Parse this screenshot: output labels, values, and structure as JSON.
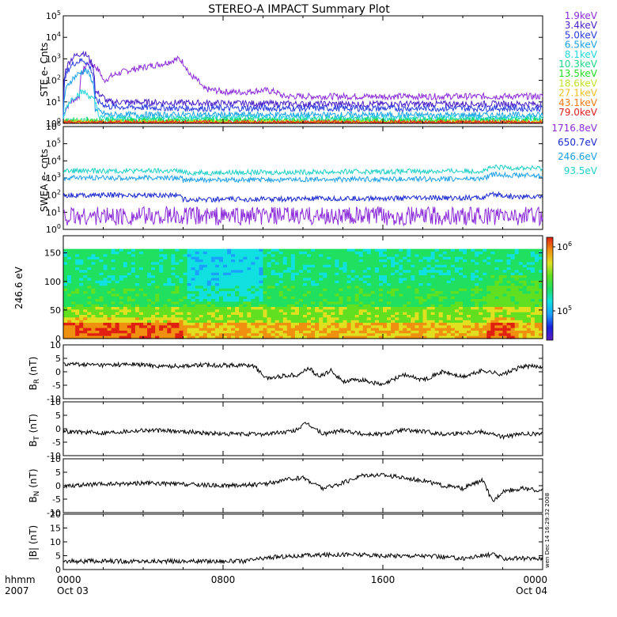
{
  "title": "STEREO-A IMPACT Summary Plot",
  "x_axis": {
    "corner_labels": [
      "hhmm",
      "2007"
    ],
    "ticks": [
      {
        "time": "0000",
        "date": "Oct 03",
        "hour": 0
      },
      {
        "time": "0800",
        "date": "",
        "hour": 8
      },
      {
        "time": "1600",
        "date": "",
        "hour": 16
      },
      {
        "time": "0000",
        "date": "Oct 04",
        "hour": 24
      }
    ]
  },
  "side_stamp": "wen Dec 14 16:29:32 2008",
  "colors": {
    "ste": [
      "#8b2bd9",
      "#4a1ec8",
      "#2a3ce0",
      "#1aa0e6",
      "#20d8d8",
      "#1cd888",
      "#20dd22",
      "#bfe025",
      "#f0c020",
      "#f07a10",
      "#e02020"
    ],
    "swea": [
      "#8b2bd9",
      "#1a28d0",
      "#1da0e8",
      "#20d0c8"
    ],
    "colorbar": [
      "#5a1dbf",
      "#1a20e0",
      "#1aa0ff",
      "#10e0e0",
      "#20e060",
      "#60e020",
      "#e0e020",
      "#f09010",
      "#e02010"
    ]
  },
  "chart_data": [
    {
      "type": "line",
      "panel": "ste",
      "ylabel": "STE e- Cnts",
      "yscale": "log",
      "ylim": [
        1,
        100000
      ],
      "ytick_labels": [
        "10^0",
        "10^1",
        "10^2",
        "10^3",
        "10^4",
        "10^5"
      ],
      "series": [
        {
          "name": "1.9keV",
          "x_hours": [
            0,
            0.8,
            1.3,
            2,
            3,
            4,
            5,
            5.8,
            6.3,
            7,
            8,
            9,
            10,
            10.6,
            11,
            14,
            18,
            22,
            24
          ],
          "values": [
            2.2,
            18,
            700,
            90,
            250,
            400,
            600,
            1000,
            180,
            40,
            30,
            28,
            35,
            30,
            18,
            18,
            18,
            18,
            18
          ]
        },
        {
          "name": "3.4keV",
          "x_hours": [
            0,
            0.5,
            1,
            1.6,
            2.2,
            6,
            12,
            24
          ],
          "values": [
            1.5,
            1200,
            2000,
            30,
            10,
            9,
            8,
            8
          ]
        },
        {
          "name": "5.0keV",
          "x_hours": [
            0,
            0.5,
            1,
            1.6,
            2.2,
            6,
            12,
            24
          ],
          "values": [
            1.3,
            600,
            900,
            12,
            6,
            5,
            5,
            5
          ]
        },
        {
          "name": "6.5keV",
          "x_hours": [
            0,
            0.6,
            1.1,
            1.6,
            2.2,
            24
          ],
          "values": [
            1.2,
            150,
            300,
            4,
            2.5,
            2.4
          ]
        },
        {
          "name": "8.1keV",
          "x_hours": [
            0,
            1,
            1.8,
            24
          ],
          "values": [
            1.1,
            30,
            1.8,
            1.7
          ]
        },
        {
          "name": "10.3keV",
          "x_hours": [
            0,
            24
          ],
          "values": [
            1.4,
            1.4
          ]
        },
        {
          "name": "13.5keV",
          "x_hours": [
            0,
            24
          ],
          "values": [
            1.2,
            1.2
          ]
        },
        {
          "name": "18.6keV",
          "x_hours": [
            0,
            24
          ],
          "values": [
            1.05,
            1.05
          ]
        },
        {
          "name": "27.1keV",
          "x_hours": [
            0,
            24
          ],
          "values": [
            1,
            1
          ]
        },
        {
          "name": "43.1keV",
          "x_hours": [
            0,
            24
          ],
          "values": [
            1,
            1
          ]
        },
        {
          "name": "79.0keV",
          "x_hours": [
            0,
            24
          ],
          "values": [
            1,
            1
          ]
        }
      ]
    },
    {
      "type": "line",
      "panel": "swea",
      "ylabel": "SWEA e- cnts",
      "yscale": "log",
      "ylim": [
        1,
        1000000
      ],
      "ytick_labels": [
        "10^0",
        "10^1",
        "10^2",
        "10^3",
        "10^4",
        "10^5",
        "10^6"
      ],
      "series": [
        {
          "name": "1716.8eV",
          "x_hours": [
            0,
            24
          ],
          "values": [
            6,
            6
          ]
        },
        {
          "name": "650.7eV",
          "x_hours": [
            0,
            5.9,
            6,
            12,
            21,
            21.6,
            22.5,
            24
          ],
          "values": [
            100,
            100,
            55,
            60,
            70,
            110,
            80,
            80
          ]
        },
        {
          "name": "246.6eV",
          "x_hours": [
            0,
            5.9,
            6,
            12,
            21,
            21.6,
            24
          ],
          "values": [
            1000,
            1000,
            750,
            800,
            900,
            1600,
            1300
          ]
        },
        {
          "name": "93.5eV",
          "x_hours": [
            0,
            5.9,
            6,
            12,
            21,
            21.6,
            24
          ],
          "values": [
            2600,
            2600,
            2000,
            2200,
            2600,
            4200,
            3600
          ]
        }
      ]
    },
    {
      "type": "heatmap",
      "panel": "pad",
      "ylabel": "246.6 eV",
      "ylim": [
        0,
        180
      ],
      "ytick_labels": [
        "0",
        "50",
        "100",
        "150"
      ],
      "colorbar": {
        "scale": "log",
        "tick_labels": [
          "10^5",
          "10^6"
        ]
      }
    },
    {
      "type": "line",
      "panel": "br",
      "ylabel": "B_R (nT)",
      "ylim": [
        -10,
        10
      ],
      "ytick_labels": [
        "10",
        "5",
        "0",
        "-5",
        "-10"
      ],
      "x_hours": [
        0,
        2,
        3.5,
        5,
        7,
        9.5,
        10.2,
        11,
        11.8,
        12.3,
        12.8,
        13.4,
        14,
        15,
        16,
        17,
        18,
        19,
        20,
        21,
        22,
        23,
        24
      ],
      "values": [
        3,
        2.5,
        2.8,
        2,
        2.5,
        2.4,
        -2.5,
        -1.5,
        -1,
        1.5,
        -2,
        0.5,
        -3.5,
        -3,
        -5,
        -1,
        -3,
        0,
        -2,
        0.5,
        -1,
        2,
        2
      ]
    },
    {
      "type": "line",
      "panel": "bt",
      "ylabel": "B_T (nT)",
      "ylim": [
        -10,
        10
      ],
      "ytick_labels": [
        "10",
        "5",
        "0",
        "-5",
        "-10"
      ],
      "x_hours": [
        0,
        2,
        4,
        6,
        8,
        10,
        11.5,
        12.2,
        13,
        14,
        15,
        16,
        17,
        18,
        19,
        20,
        21,
        22,
        23,
        24
      ],
      "values": [
        -1,
        -1.5,
        -0.5,
        -1,
        -2,
        -2,
        -1,
        2,
        -2,
        -0.5,
        -2,
        -2,
        -0.5,
        -1,
        -2,
        -1.5,
        -1,
        -3,
        -2,
        -2
      ]
    },
    {
      "type": "line",
      "panel": "bn",
      "ylabel": "B_N (nT)",
      "ylim": [
        -10,
        10
      ],
      "ytick_labels": [
        "10",
        "5",
        "0",
        "-5",
        "-10"
      ],
      "x_hours": [
        0,
        2,
        4,
        6,
        8,
        10,
        11,
        12,
        13,
        14,
        15,
        16,
        17,
        18,
        19,
        20,
        21,
        21.5,
        22,
        23,
        24
      ],
      "values": [
        0,
        0.5,
        1,
        0.5,
        0,
        0.5,
        2,
        3,
        -1,
        1,
        4,
        4,
        3,
        2,
        0,
        -1,
        2,
        -6,
        -2,
        -1,
        -2
      ]
    },
    {
      "type": "line",
      "panel": "bmag",
      "ylabel": "|B| (nT)",
      "ylim": [
        0,
        20
      ],
      "ytick_labels": [
        "20",
        "15",
        "10",
        "5",
        "0"
      ],
      "x_hours": [
        0,
        3,
        6,
        9,
        10.5,
        12,
        14,
        16,
        18,
        20,
        21.5,
        22,
        24
      ],
      "values": [
        3,
        3,
        3,
        3,
        4.5,
        5,
        5.5,
        5,
        5,
        4,
        5.5,
        4,
        4
      ]
    }
  ]
}
